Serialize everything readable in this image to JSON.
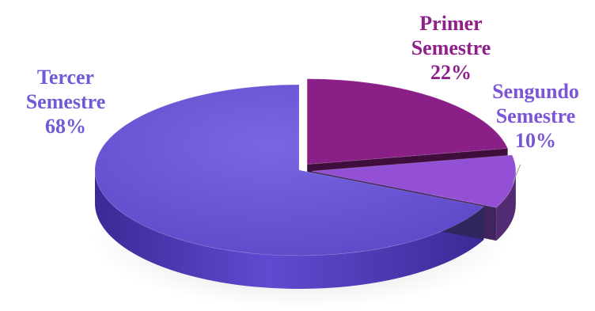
{
  "chart_data": {
    "type": "pie",
    "title": "",
    "slices": [
      {
        "name_line1": "Primer",
        "name_line2": "Semestre",
        "percent_label": "22%",
        "value": 22,
        "color": "#8b1f88",
        "label_color": "#8e1f8b"
      },
      {
        "name_line1": "Sengundo",
        "name_line2": "Semestre",
        "percent_label": "10%",
        "value": 10,
        "color": "#9350d4",
        "label_color": "#7a56d6"
      },
      {
        "name_line1": "Tercer",
        "name_line2": "Semestre",
        "percent_label": "68%",
        "value": 68,
        "color": "#6b56d6",
        "label_color": "#6f5ad8"
      }
    ],
    "exploded": [
      "Primer Semestre",
      "Sengundo Semestre"
    ],
    "style": "3d",
    "legend": "none"
  }
}
